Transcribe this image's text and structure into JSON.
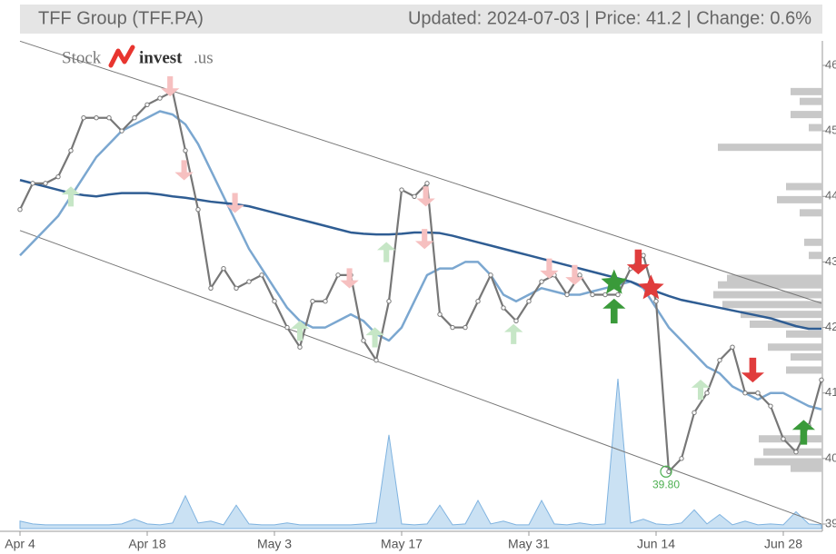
{
  "chart_data": {
    "type": "line",
    "title": "TFF Group (TFF.PA)",
    "subtitle": "Updated: 2024-07-03 | Price: 41.2 | Change: 0.6%",
    "logo": [
      "Stock",
      "invest",
      ".us"
    ],
    "categories": [
      "Apr 4",
      null,
      null,
      null,
      null,
      null,
      null,
      null,
      null,
      null,
      "Apr 18",
      null,
      null,
      null,
      null,
      null,
      null,
      null,
      null,
      null,
      "May 3",
      null,
      null,
      null,
      null,
      null,
      null,
      null,
      null,
      null,
      "May 17",
      null,
      null,
      null,
      null,
      null,
      null,
      null,
      null,
      null,
      "May 31",
      null,
      null,
      null,
      null,
      null,
      null,
      null,
      null,
      null,
      "Jun 14",
      null,
      null,
      null,
      null,
      null,
      null,
      null,
      null,
      null,
      "Jun 28",
      null,
      null,
      null
    ],
    "ylim": [
      39,
      46
    ],
    "yticks": [
      39,
      40,
      41,
      42,
      43,
      44,
      45,
      46
    ],
    "series": [
      {
        "color": "#7ba7d0",
        "values": [
          43.1,
          43.3,
          43.5,
          43.7,
          44.0,
          44.3,
          44.6,
          44.8,
          45.0,
          45.1,
          45.2,
          45.3,
          45.25,
          45.1,
          44.8,
          44.4,
          44.0,
          43.6,
          43.2,
          42.9,
          42.6,
          42.3,
          42.1,
          42.0,
          42.0,
          42.1,
          42.2,
          42.1,
          41.9,
          41.8,
          42.0,
          42.4,
          42.8,
          42.9,
          42.9,
          43.0,
          43.0,
          42.8,
          42.5,
          42.4,
          42.5,
          42.6,
          42.55,
          42.5,
          42.5,
          42.55,
          42.6,
          42.65,
          42.7,
          42.6,
          42.3,
          42.0,
          41.8,
          41.6,
          41.4,
          41.3,
          41.1,
          41.0,
          40.9,
          41.0,
          41.0,
          40.9,
          40.8,
          40.75
        ]
      },
      {
        "color": "#2f5d93",
        "values": [
          44.25,
          44.2,
          44.15,
          44.1,
          44.05,
          44.02,
          44.0,
          44.03,
          44.05,
          44.05,
          44.05,
          44.03,
          44.0,
          43.98,
          43.95,
          43.92,
          43.9,
          43.88,
          43.85,
          43.8,
          43.75,
          43.7,
          43.65,
          43.6,
          43.55,
          43.5,
          43.45,
          43.43,
          43.42,
          43.42,
          43.43,
          43.45,
          43.45,
          43.44,
          43.4,
          43.35,
          43.3,
          43.25,
          43.2,
          43.15,
          43.1,
          43.05,
          43.0,
          42.95,
          42.9,
          42.85,
          42.8,
          42.75,
          42.7,
          42.62,
          42.55,
          42.48,
          42.42,
          42.38,
          42.34,
          42.3,
          42.26,
          42.22,
          42.18,
          42.14,
          42.08,
          42.02,
          41.98,
          41.98
        ]
      },
      {
        "color": "#777777",
        "values": [
          43.8,
          44.2,
          44.2,
          44.3,
          44.7,
          45.2,
          45.2,
          45.2,
          45.0,
          45.2,
          45.4,
          45.5,
          45.6,
          44.7,
          43.8,
          42.6,
          42.9,
          42.6,
          42.7,
          42.8,
          42.4,
          42.0,
          41.7,
          42.4,
          42.4,
          42.8,
          42.8,
          41.8,
          41.5,
          42.4,
          44.1,
          44.0,
          44.2,
          42.2,
          42.0,
          42.0,
          42.4,
          42.8,
          42.3,
          42.1,
          42.4,
          42.7,
          42.8,
          42.5,
          42.8,
          42.5,
          42.5,
          42.5,
          42.9,
          43.1,
          42.4,
          39.8,
          40.0,
          40.7,
          41.0,
          41.5,
          41.7,
          41.0,
          41.0,
          40.8,
          40.3,
          40.1,
          40.5,
          41.2
        ]
      }
    ],
    "volume": {
      "color": "#9fc8ea",
      "values": [
        8,
        5,
        4,
        4,
        4,
        4,
        4,
        4,
        5,
        10,
        5,
        4,
        6,
        35,
        6,
        8,
        4,
        25,
        5,
        4,
        4,
        6,
        4,
        4,
        4,
        4,
        4,
        5,
        6,
        100,
        5,
        4,
        5,
        25,
        4,
        5,
        30,
        5,
        8,
        4,
        4,
        30,
        5,
        4,
        6,
        4,
        5,
        160,
        6,
        10,
        5,
        4,
        6,
        20,
        5,
        15,
        4,
        8,
        4,
        5,
        4,
        18,
        5,
        4
      ]
    },
    "channel": {
      "color": "#777777",
      "upper": [
        46.37,
        42.37
      ],
      "lower": [
        43.48,
        39.0
      ]
    },
    "volume_profile": {
      "color": "#c8c8c8",
      "levels": [
        45.6,
        45.45,
        45.25,
        45.05,
        44.75,
        44.15,
        43.95,
        43.75,
        43.3,
        43.1,
        42.75,
        42.65,
        42.5,
        42.35,
        42.2,
        42.05,
        41.9,
        41.7,
        41.55,
        41.35,
        40.3,
        40.1,
        39.95,
        39.85
      ],
      "values": [
        35,
        25,
        35,
        15,
        115,
        40,
        50,
        25,
        20,
        15,
        105,
        115,
        120,
        110,
        90,
        80,
        40,
        60,
        35,
        40,
        70,
        65,
        75,
        35
      ]
    },
    "signals": {
      "faded_sell": {
        "color": "#f6c0c0",
        "x": [
          11.8,
          12.9,
          16.9,
          25.9,
          31.9,
          31.8,
          41.6,
          43.6
        ],
        "values": [
          45.68,
          44.4,
          43.9,
          42.75,
          44.0,
          43.35,
          42.9,
          42.8
        ]
      },
      "faded_buy": {
        "color": "#c6e6c6",
        "x": [
          4,
          22,
          28.8,
          27.9,
          38.8,
          53.5
        ],
        "values": [
          44.0,
          41.95,
          43.15,
          41.85,
          41.9,
          41.05
        ]
      },
      "strong_sell": {
        "color": "#e03c3c",
        "x": [
          48.6,
          57.6
        ],
        "values": [
          43.0,
          41.35
        ]
      },
      "strong_buy": {
        "color": "#3a9a3a",
        "x": [
          46.7,
          61.6
        ],
        "values": [
          42.25,
          40.4
        ]
      },
      "star_buy": {
        "color": "#3a9a3a",
        "x": [
          46.7
        ],
        "values": [
          42.68
        ]
      },
      "star_sell": {
        "color": "#e03c3c",
        "x": [
          49.6
        ],
        "values": [
          42.6
        ]
      }
    },
    "annotation": {
      "x": 51,
      "value": 39.8,
      "label": "39.80",
      "color": "#4caf50"
    }
  }
}
